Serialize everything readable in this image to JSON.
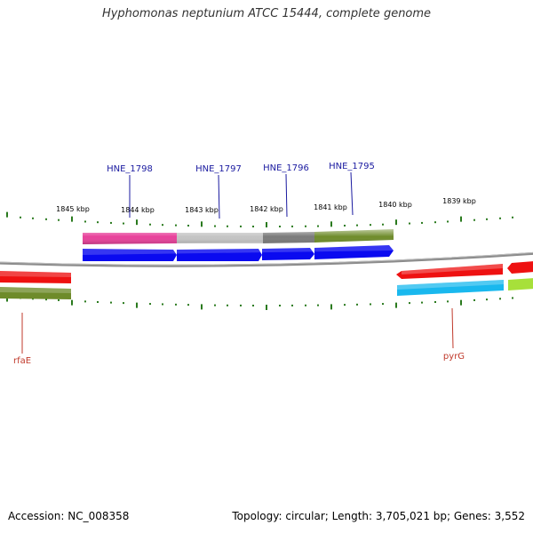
{
  "title": "Hyphomonas neptunium ATCC 15444, complete genome",
  "footer": {
    "accession": "Accession: NC_008358",
    "topology": "Topology: circular; Length: 3,705,021 bp; Genes: 3,552"
  },
  "scale_labels": [
    "1845 kbp",
    "1844 kbp",
    "1843 kbp",
    "1842 kbp",
    "1841 kbp",
    "1840 kbp",
    "1839 kbp"
  ],
  "top_gene_labels": [
    "HNE_1798",
    "HNE_1797",
    "HNE_1796",
    "HNE_1795"
  ],
  "bottom_gene_labels": [
    "rfaE",
    "pyrG"
  ],
  "colors": {
    "backbone": "#8c8c8c",
    "tick": "#2a7a1e",
    "top_label": "#1a1aa0",
    "bottom_label": "#c0392b",
    "cds": "#0a0af0",
    "magenta": "#e8409a",
    "light_gray": "#c4c4c4",
    "dark_gray": "#7a7a7a",
    "olive": "#6e8b2a",
    "red": "#ee1111",
    "cyan": "#19b8ee",
    "lime": "#a7e03a"
  }
}
